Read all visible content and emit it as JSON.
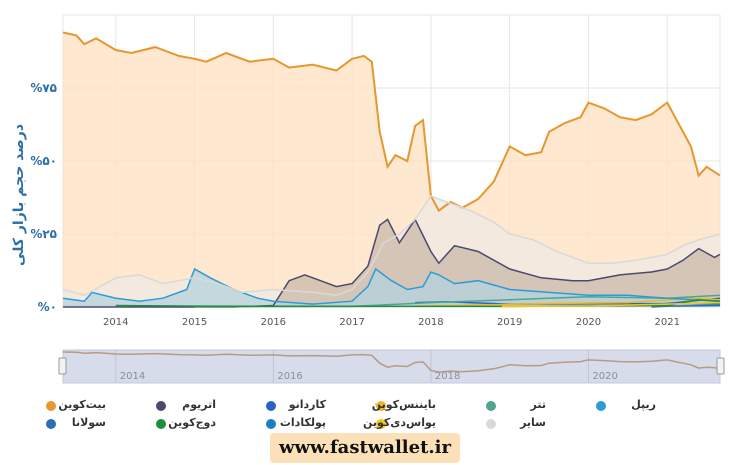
{
  "chart_data": {
    "type": "area",
    "ylabel": "درصد حجم بازار کلی",
    "y_ticks": [
      "%۰",
      "%۲۵",
      "%۵۰",
      "%۷۵"
    ],
    "y_tick_values": [
      0,
      25,
      50,
      75
    ],
    "ylim": [
      0,
      100
    ],
    "x_ticks": [
      "2014",
      "2015",
      "2016",
      "2017",
      "2018",
      "2019",
      "2020",
      "2021"
    ],
    "x_tick_values": [
      2014,
      2015,
      2016,
      2017,
      2018,
      2019,
      2020,
      2021
    ],
    "xlim": [
      2013.33,
      2021.67
    ],
    "grid": true,
    "legend_position": "bottom",
    "series": [
      {
        "name": "بیت‌کوین",
        "color": "#e8962e",
        "fill": "#fde0bf",
        "x": [
          2013.33,
          2013.5,
          2013.6,
          2013.75,
          2014.0,
          2014.2,
          2014.5,
          2014.8,
          2015.0,
          2015.15,
          2015.4,
          2015.7,
          2016.0,
          2016.2,
          2016.5,
          2016.8,
          2017.0,
          2017.15,
          2017.25,
          2017.35,
          2017.45,
          2017.55,
          2017.7,
          2017.8,
          2017.9,
          2018.0,
          2018.1,
          2018.25,
          2018.4,
          2018.6,
          2018.8,
          2019.0,
          2019.2,
          2019.4,
          2019.5,
          2019.7,
          2019.9,
          2020.0,
          2020.2,
          2020.4,
          2020.6,
          2020.8,
          2021.0,
          2021.1,
          2021.2,
          2021.3,
          2021.4,
          2021.5,
          2021.67
        ],
        "values": [
          94,
          93,
          90,
          92,
          88,
          87,
          89,
          86,
          85,
          84,
          87,
          84,
          85,
          82,
          83,
          81,
          85,
          86,
          84,
          60,
          48,
          52,
          50,
          62,
          64,
          38,
          33,
          36,
          34,
          37,
          43,
          55,
          52,
          53,
          60,
          63,
          65,
          70,
          68,
          65,
          64,
          66,
          70,
          65,
          60,
          55,
          45,
          48,
          45
        ]
      },
      {
        "name": "اتریوم",
        "color": "#4a4a6e",
        "fill": "#c9b8a8",
        "x": [
          2013.33,
          2015.5,
          2016.0,
          2016.2,
          2016.4,
          2016.6,
          2016.8,
          2017.0,
          2017.2,
          2017.35,
          2017.45,
          2017.6,
          2017.8,
          2018.0,
          2018.1,
          2018.3,
          2018.6,
          2019.0,
          2019.4,
          2019.8,
          2020.0,
          2020.4,
          2020.8,
          2021.0,
          2021.2,
          2021.4,
          2021.6,
          2021.67
        ],
        "values": [
          0,
          0,
          0.5,
          9,
          11,
          9,
          7,
          8,
          14,
          28,
          30,
          22,
          30,
          19,
          15,
          21,
          19,
          13,
          10,
          9,
          9,
          11,
          12,
          13,
          16,
          20,
          17,
          18
        ]
      },
      {
        "name": "کاردانو",
        "color": "#2a63c2",
        "fill": "none",
        "x": [
          2017.8,
          2018.2,
          2019.0,
          2021.0,
          2021.67
        ],
        "values": [
          1.5,
          1.8,
          1,
          1.2,
          3
        ]
      },
      {
        "name": "بایننس‌کوین",
        "color": "#f0b622",
        "fill": "none",
        "x": [
          2017.8,
          2018.5,
          2019.5,
          2020.5,
          2021.3,
          2021.67
        ],
        "values": [
          0.3,
          0.6,
          1.2,
          1.5,
          3,
          2.5
        ]
      },
      {
        "name": "تتر",
        "color": "#4ea68f",
        "fill": "none",
        "x": [
          2015.0,
          2017.0,
          2018.0,
          2019.0,
          2020.0,
          2021.0,
          2021.67
        ],
        "values": [
          0.1,
          0.2,
          1.5,
          2.5,
          3.5,
          3,
          4
        ]
      },
      {
        "name": "ریپل",
        "color": "#2b9cd8",
        "fill": "#b4d2de",
        "x": [
          2013.33,
          2013.6,
          2013.7,
          2014.0,
          2014.3,
          2014.6,
          2014.9,
          2015.0,
          2015.2,
          2015.5,
          2015.8,
          2016.0,
          2016.5,
          2017.0,
          2017.2,
          2017.3,
          2017.5,
          2017.7,
          2017.9,
          2018.0,
          2018.1,
          2018.3,
          2018.6,
          2019.0,
          2019.5,
          2020.0,
          2020.5,
          2021.0,
          2021.67
        ],
        "values": [
          3,
          2,
          5,
          3,
          2,
          3,
          6,
          13,
          10,
          6,
          3,
          2,
          1,
          2,
          7,
          13,
          9,
          6,
          7,
          12,
          11,
          8,
          9,
          6,
          5,
          4,
          4,
          3,
          2
        ]
      },
      {
        "name": "سولانا",
        "color": "#2b6fb0",
        "fill": "none",
        "x": [
          2020.8,
          2021.0,
          2021.67
        ],
        "values": [
          0,
          0.3,
          0.5
        ]
      },
      {
        "name": "دوج‌کوین",
        "color": "#1f8f3c",
        "fill": "none",
        "x": [
          2014.0,
          2015.0,
          2017.0,
          2019.0,
          2021.0,
          2021.4,
          2021.67
        ],
        "values": [
          0.5,
          0.3,
          0.2,
          0.2,
          0.5,
          2.5,
          2
        ]
      },
      {
        "name": "پولکادات",
        "color": "#1b7fc0",
        "fill": "none",
        "x": [
          2020.7,
          2021.0,
          2021.67
        ],
        "values": [
          0.8,
          1.2,
          1
        ]
      },
      {
        "name": "یواس‌دی‌کوین",
        "color": "#f2c51a",
        "fill": "none",
        "x": [
          2018.9,
          2020.0,
          2021.0,
          2021.67
        ],
        "values": [
          0.2,
          0.3,
          1,
          1.5
        ]
      },
      {
        "name": "سایر",
        "color": "#d9d9d9",
        "fill": "#efe9e3",
        "x": [
          2013.33,
          2013.6,
          2014.0,
          2014.3,
          2014.6,
          2015.0,
          2015.3,
          2015.6,
          2016.0,
          2016.5,
          2016.8,
          2017.0,
          2017.2,
          2017.4,
          2017.6,
          2017.8,
          2018.0,
          2018.2,
          2018.5,
          2018.8,
          2019.0,
          2019.3,
          2019.6,
          2020.0,
          2020.3,
          2020.6,
          2021.0,
          2021.2,
          2021.4,
          2021.67
        ],
        "values": [
          6,
          4,
          10,
          11,
          8,
          10,
          8,
          5,
          6,
          5,
          4,
          6,
          12,
          22,
          25,
          30,
          38,
          36,
          33,
          29,
          25,
          23,
          19,
          15,
          15,
          16,
          18,
          21,
          23,
          25
        ]
      }
    ],
    "navigator": {
      "xlim": [
        2013.33,
        2021.67
      ],
      "labels": [
        "2014",
        "2016",
        "2018",
        "2020"
      ],
      "label_values": [
        2014,
        2016,
        2018,
        2020
      ]
    }
  },
  "footer": {
    "watermark": "www.fastwallet.ir"
  }
}
